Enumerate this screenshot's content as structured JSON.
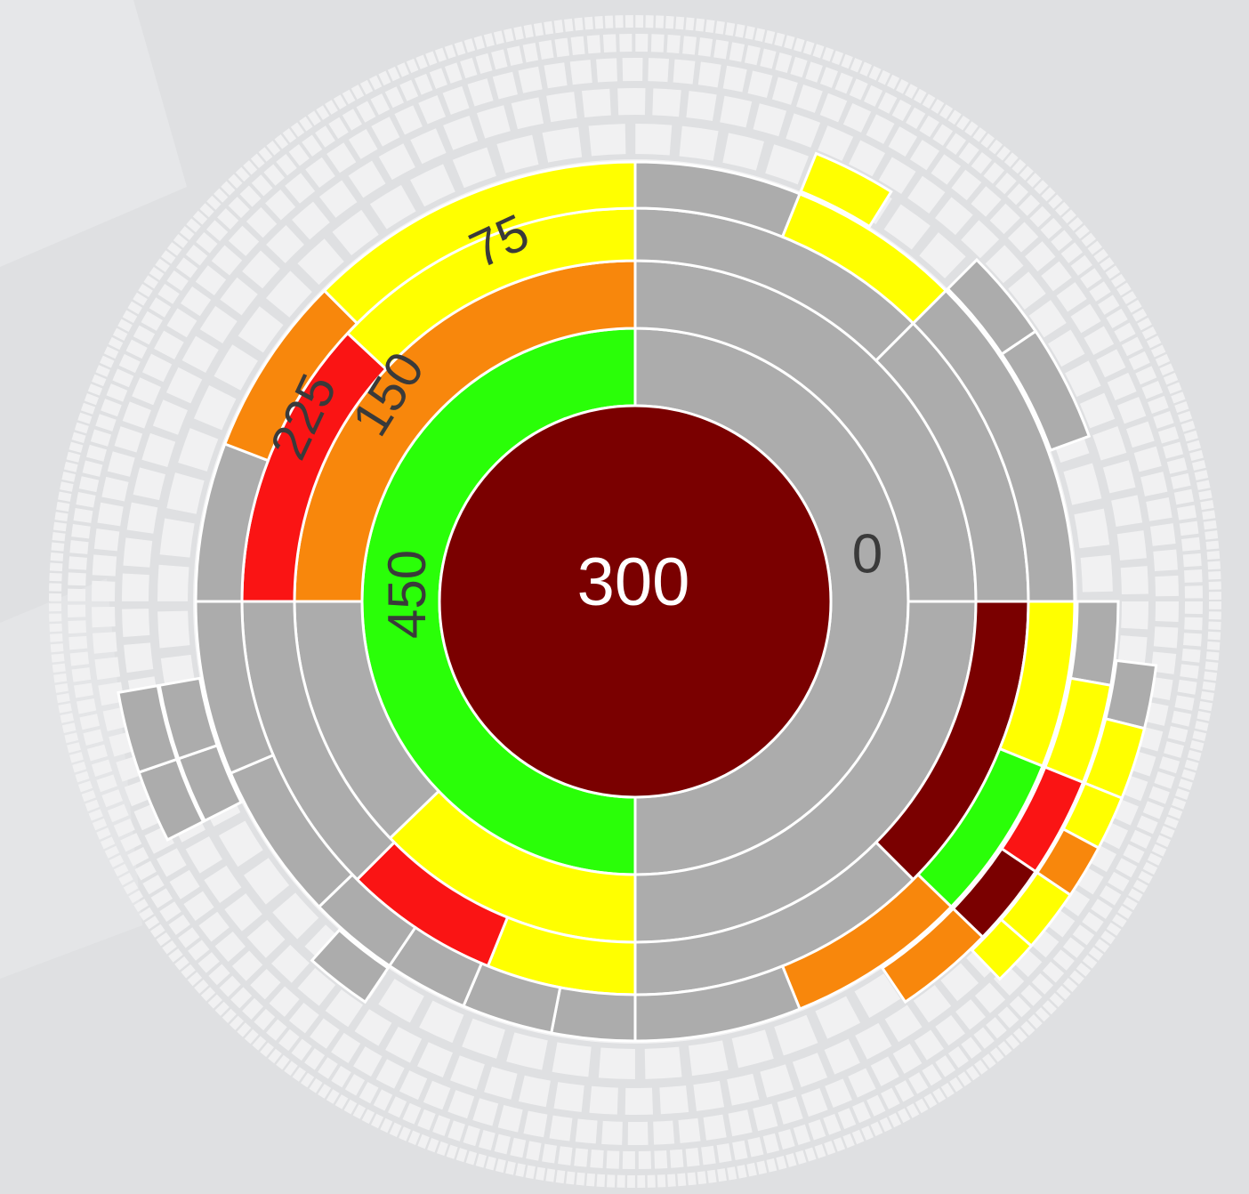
{
  "center_value": 300,
  "labels": [
    0,
    75,
    150,
    225,
    450
  ]
}
